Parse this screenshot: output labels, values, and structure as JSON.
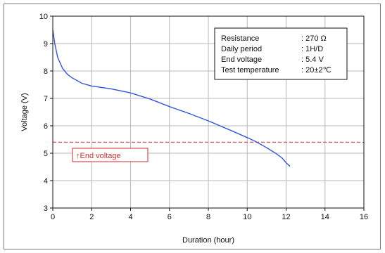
{
  "chart_data": {
    "type": "line",
    "title": "",
    "xlabel": "Duration (hour)",
    "ylabel": "Voltage (V)",
    "xlim": [
      0,
      16
    ],
    "ylim": [
      3,
      10
    ],
    "x_ticks": [
      0,
      2,
      4,
      6,
      8,
      10,
      12,
      14,
      16
    ],
    "y_ticks": [
      3,
      4,
      5,
      6,
      7,
      8,
      9,
      10
    ],
    "grid": true,
    "series": [
      {
        "color": "#3355dd",
        "x": [
          0,
          0.1,
          0.25,
          0.5,
          0.75,
          1,
          1.5,
          2,
          3,
          4,
          5,
          6,
          7,
          8,
          9,
          10,
          10.5,
          11,
          11.5,
          11.8,
          12,
          12.2
        ],
        "y": [
          9.5,
          9.0,
          8.5,
          8.1,
          7.88,
          7.75,
          7.55,
          7.45,
          7.35,
          7.2,
          6.98,
          6.7,
          6.45,
          6.18,
          5.88,
          5.57,
          5.4,
          5.2,
          4.98,
          4.82,
          4.65,
          4.52
        ]
      }
    ],
    "reference_line": {
      "y": 5.4,
      "color": "#e05555",
      "style": "dashed"
    },
    "annotation": {
      "text": "↑End voltage",
      "color": "#d62a2a"
    },
    "info_box": {
      "rows": [
        {
          "label": "Resistance",
          "value": ": 270 Ω"
        },
        {
          "label": "Daily period",
          "value": ": 1H/D"
        },
        {
          "label": "End voltage",
          "value": ": 5.4 V"
        },
        {
          "label": "Test temperature",
          "value": ": 20±2℃"
        }
      ]
    }
  }
}
